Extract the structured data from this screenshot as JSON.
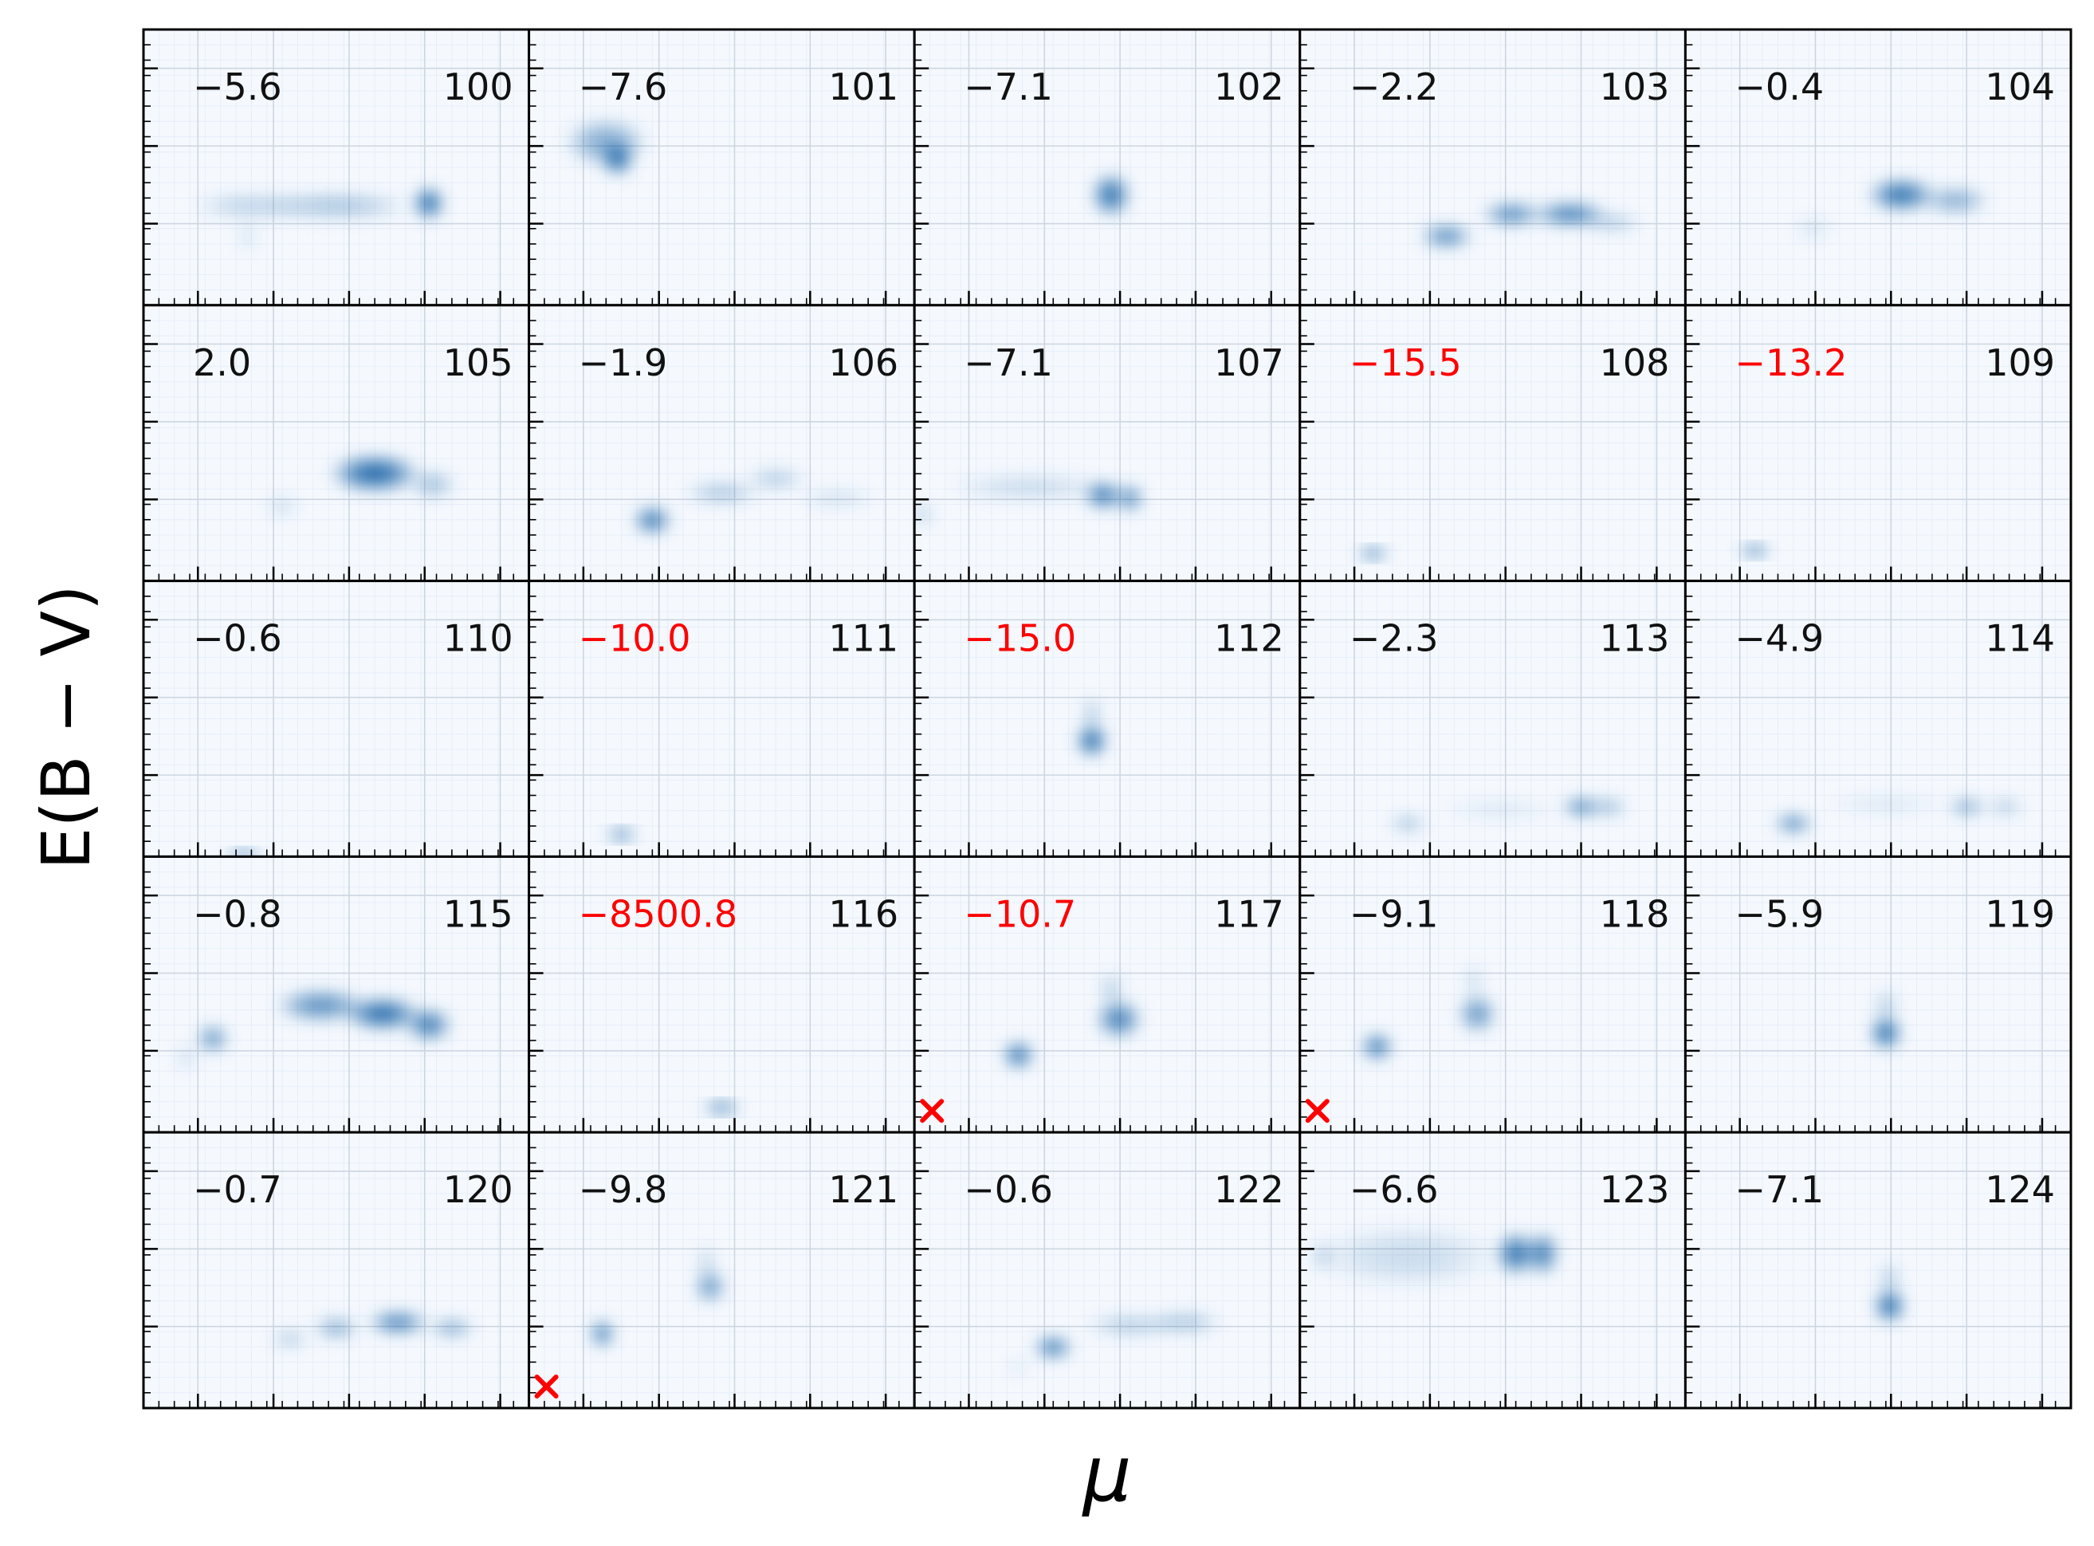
{
  "figure": {
    "xlabel": "μ",
    "ylabel": "E(B − V)",
    "rows": 5,
    "cols": 5,
    "colormap": "Blues",
    "grid": true
  },
  "colors": {
    "frame": "#000000",
    "normal_label": "#111111",
    "flagged_label": "#ff0000",
    "marker": "#ff0000",
    "panel_background": "#f5f9fe",
    "density": "#08519c"
  },
  "chart_data": {
    "type": "heatmap",
    "xlabel": "μ",
    "ylabel": "E(B − V)",
    "grid": true,
    "x_tick_count": 5,
    "y_tick_count": 3,
    "panels": [
      {
        "id": "100",
        "value": "−5.6",
        "flagged": false,
        "marker": false,
        "blobs": [
          {
            "x": 0.28,
            "y": 0.36,
            "w": 0.16,
            "h": 0.05,
            "a": 0.25
          },
          {
            "x": 0.5,
            "y": 0.36,
            "w": 0.2,
            "h": 0.05,
            "a": 0.35
          },
          {
            "x": 0.74,
            "y": 0.37,
            "w": 0.04,
            "h": 0.06,
            "a": 1.0
          },
          {
            "x": 0.27,
            "y": 0.25,
            "w": 0.02,
            "h": 0.06,
            "a": 0.2
          }
        ]
      },
      {
        "id": "101",
        "value": "−7.6",
        "flagged": false,
        "marker": false,
        "blobs": [
          {
            "x": 0.2,
            "y": 0.59,
            "w": 0.11,
            "h": 0.09,
            "a": 0.5
          },
          {
            "x": 0.23,
            "y": 0.53,
            "w": 0.04,
            "h": 0.06,
            "a": 1.0
          }
        ]
      },
      {
        "id": "102",
        "value": "−7.1",
        "flagged": false,
        "marker": false,
        "blobs": [
          {
            "x": 0.51,
            "y": 0.4,
            "w": 0.05,
            "h": 0.08,
            "a": 0.9
          }
        ]
      },
      {
        "id": "103",
        "value": "−2.2",
        "flagged": false,
        "marker": false,
        "blobs": [
          {
            "x": 0.38,
            "y": 0.25,
            "w": 0.07,
            "h": 0.04,
            "a": 0.8
          },
          {
            "x": 0.55,
            "y": 0.33,
            "w": 0.08,
            "h": 0.04,
            "a": 0.8
          },
          {
            "x": 0.7,
            "y": 0.33,
            "w": 0.1,
            "h": 0.04,
            "a": 0.9
          },
          {
            "x": 0.81,
            "y": 0.3,
            "w": 0.08,
            "h": 0.03,
            "a": 0.35
          }
        ]
      },
      {
        "id": "104",
        "value": "−0.4",
        "flagged": false,
        "marker": false,
        "blobs": [
          {
            "x": 0.33,
            "y": 0.28,
            "w": 0.05,
            "h": 0.04,
            "a": 0.15
          },
          {
            "x": 0.56,
            "y": 0.4,
            "w": 0.09,
            "h": 0.06,
            "a": 0.9
          },
          {
            "x": 0.7,
            "y": 0.38,
            "w": 0.09,
            "h": 0.05,
            "a": 0.5
          }
        ]
      },
      {
        "id": "105",
        "value": "2.0",
        "flagged": false,
        "marker": false,
        "blobs": [
          {
            "x": 0.36,
            "y": 0.27,
            "w": 0.04,
            "h": 0.04,
            "a": 0.2
          },
          {
            "x": 0.6,
            "y": 0.39,
            "w": 0.12,
            "h": 0.07,
            "a": 0.95
          },
          {
            "x": 0.75,
            "y": 0.35,
            "w": 0.06,
            "h": 0.05,
            "a": 0.4
          }
        ]
      },
      {
        "id": "106",
        "value": "−1.9",
        "flagged": false,
        "marker": false,
        "blobs": [
          {
            "x": 0.32,
            "y": 0.22,
            "w": 0.05,
            "h": 0.05,
            "a": 0.9
          },
          {
            "x": 0.5,
            "y": 0.32,
            "w": 0.1,
            "h": 0.04,
            "a": 0.35
          },
          {
            "x": 0.64,
            "y": 0.37,
            "w": 0.08,
            "h": 0.04,
            "a": 0.3
          },
          {
            "x": 0.8,
            "y": 0.3,
            "w": 0.1,
            "h": 0.03,
            "a": 0.2
          }
        ]
      },
      {
        "id": "107",
        "value": "−7.1",
        "flagged": false,
        "marker": false,
        "blobs": [
          {
            "x": 0.3,
            "y": 0.34,
            "w": 0.22,
            "h": 0.05,
            "a": 0.2
          },
          {
            "x": 0.49,
            "y": 0.31,
            "w": 0.05,
            "h": 0.05,
            "a": 0.9
          },
          {
            "x": 0.56,
            "y": 0.3,
            "w": 0.03,
            "h": 0.05,
            "a": 0.85
          },
          {
            "x": 0.02,
            "y": 0.24,
            "w": 0.03,
            "h": 0.04,
            "a": 0.3
          }
        ]
      },
      {
        "id": "108",
        "value": "−15.5",
        "flagged": true,
        "marker": false,
        "blobs": [
          {
            "x": 0.19,
            "y": 0.1,
            "w": 0.04,
            "h": 0.02,
            "a": 1.0
          }
        ]
      },
      {
        "id": "109",
        "value": "−13.2",
        "flagged": true,
        "marker": false,
        "blobs": [
          {
            "x": 0.18,
            "y": 0.11,
            "w": 0.04,
            "h": 0.02,
            "a": 1.0
          }
        ]
      },
      {
        "id": "110",
        "value": "−0.6",
        "flagged": false,
        "marker": false,
        "blobs": [
          {
            "x": 0.26,
            "y": 0.01,
            "w": 0.05,
            "h": 0.015,
            "a": 1.0
          }
        ]
      },
      {
        "id": "111",
        "value": "−10.0",
        "flagged": true,
        "marker": false,
        "blobs": [
          {
            "x": 0.24,
            "y": 0.08,
            "w": 0.04,
            "h": 0.02,
            "a": 1.0
          }
        ]
      },
      {
        "id": "112",
        "value": "−15.0",
        "flagged": true,
        "marker": false,
        "blobs": [
          {
            "x": 0.46,
            "y": 0.42,
            "w": 0.04,
            "h": 0.06,
            "a": 1.0
          },
          {
            "x": 0.46,
            "y": 0.52,
            "w": 0.02,
            "h": 0.06,
            "a": 0.4
          }
        ]
      },
      {
        "id": "113",
        "value": "−2.3",
        "flagged": false,
        "marker": false,
        "blobs": [
          {
            "x": 0.28,
            "y": 0.12,
            "w": 0.05,
            "h": 0.03,
            "a": 0.4
          },
          {
            "x": 0.52,
            "y": 0.17,
            "w": 0.16,
            "h": 0.03,
            "a": 0.15
          },
          {
            "x": 0.73,
            "y": 0.18,
            "w": 0.05,
            "h": 0.03,
            "a": 0.9
          },
          {
            "x": 0.8,
            "y": 0.18,
            "w": 0.05,
            "h": 0.03,
            "a": 0.5
          }
        ]
      },
      {
        "id": "114",
        "value": "−4.9",
        "flagged": false,
        "marker": false,
        "blobs": [
          {
            "x": 0.28,
            "y": 0.12,
            "w": 0.05,
            "h": 0.03,
            "a": 0.9
          },
          {
            "x": 0.52,
            "y": 0.19,
            "w": 0.16,
            "h": 0.03,
            "a": 0.15
          },
          {
            "x": 0.73,
            "y": 0.18,
            "w": 0.05,
            "h": 0.03,
            "a": 0.6
          },
          {
            "x": 0.83,
            "y": 0.18,
            "w": 0.05,
            "h": 0.03,
            "a": 0.35
          }
        ]
      },
      {
        "id": "115",
        "value": "−0.8",
        "flagged": false,
        "marker": false,
        "blobs": [
          {
            "x": 0.18,
            "y": 0.34,
            "w": 0.04,
            "h": 0.05,
            "a": 0.7
          },
          {
            "x": 0.46,
            "y": 0.46,
            "w": 0.12,
            "h": 0.06,
            "a": 0.7
          },
          {
            "x": 0.62,
            "y": 0.43,
            "w": 0.1,
            "h": 0.06,
            "a": 0.95
          },
          {
            "x": 0.74,
            "y": 0.39,
            "w": 0.06,
            "h": 0.06,
            "a": 0.85
          },
          {
            "x": 0.11,
            "y": 0.27,
            "w": 0.02,
            "h": 0.05,
            "a": 0.25
          }
        ]
      },
      {
        "id": "116",
        "value": "−8500.8",
        "flagged": true,
        "marker": false,
        "blobs": [
          {
            "x": 0.5,
            "y": 0.09,
            "w": 0.05,
            "h": 0.02,
            "a": 1.0
          }
        ]
      },
      {
        "id": "117",
        "value": "−10.7",
        "flagged": true,
        "marker": true,
        "blobs": [
          {
            "x": 0.27,
            "y": 0.28,
            "w": 0.04,
            "h": 0.05,
            "a": 0.95
          },
          {
            "x": 0.53,
            "y": 0.41,
            "w": 0.06,
            "h": 0.07,
            "a": 0.8
          },
          {
            "x": 0.51,
            "y": 0.52,
            "w": 0.03,
            "h": 0.06,
            "a": 0.3
          }
        ]
      },
      {
        "id": "118",
        "value": "−9.1",
        "flagged": false,
        "marker": true,
        "blobs": [
          {
            "x": 0.2,
            "y": 0.31,
            "w": 0.04,
            "h": 0.05,
            "a": 0.9
          },
          {
            "x": 0.46,
            "y": 0.43,
            "w": 0.05,
            "h": 0.07,
            "a": 0.65
          },
          {
            "x": 0.45,
            "y": 0.55,
            "w": 0.02,
            "h": 0.06,
            "a": 0.25
          }
        ]
      },
      {
        "id": "119",
        "value": "−5.9",
        "flagged": false,
        "marker": false,
        "blobs": [
          {
            "x": 0.52,
            "y": 0.36,
            "w": 0.04,
            "h": 0.06,
            "a": 1.0
          },
          {
            "x": 0.52,
            "y": 0.46,
            "w": 0.03,
            "h": 0.06,
            "a": 0.3
          }
        ]
      },
      {
        "id": "120",
        "value": "−0.7",
        "flagged": false,
        "marker": false,
        "blobs": [
          {
            "x": 0.38,
            "y": 0.25,
            "w": 0.05,
            "h": 0.03,
            "a": 0.35
          },
          {
            "x": 0.5,
            "y": 0.29,
            "w": 0.06,
            "h": 0.04,
            "a": 0.5
          },
          {
            "x": 0.66,
            "y": 0.31,
            "w": 0.08,
            "h": 0.04,
            "a": 0.85
          },
          {
            "x": 0.8,
            "y": 0.29,
            "w": 0.06,
            "h": 0.03,
            "a": 0.6
          }
        ]
      },
      {
        "id": "121",
        "value": "−9.8",
        "flagged": false,
        "marker": true,
        "blobs": [
          {
            "x": 0.19,
            "y": 0.27,
            "w": 0.03,
            "h": 0.05,
            "a": 0.9
          },
          {
            "x": 0.47,
            "y": 0.44,
            "w": 0.04,
            "h": 0.06,
            "a": 0.65
          },
          {
            "x": 0.46,
            "y": 0.53,
            "w": 0.02,
            "h": 0.06,
            "a": 0.3
          }
        ]
      },
      {
        "id": "122",
        "value": "−0.6",
        "flagged": false,
        "marker": false,
        "blobs": [
          {
            "x": 0.36,
            "y": 0.22,
            "w": 0.05,
            "h": 0.04,
            "a": 0.9
          },
          {
            "x": 0.56,
            "y": 0.3,
            "w": 0.12,
            "h": 0.04,
            "a": 0.3
          },
          {
            "x": 0.7,
            "y": 0.31,
            "w": 0.1,
            "h": 0.04,
            "a": 0.35
          },
          {
            "x": 0.27,
            "y": 0.15,
            "w": 0.02,
            "h": 0.03,
            "a": 0.2
          }
        ]
      },
      {
        "id": "123",
        "value": "−6.6",
        "flagged": false,
        "marker": false,
        "blobs": [
          {
            "x": 0.28,
            "y": 0.55,
            "w": 0.25,
            "h": 0.12,
            "a": 0.18
          },
          {
            "x": 0.56,
            "y": 0.56,
            "w": 0.05,
            "h": 0.08,
            "a": 0.9
          },
          {
            "x": 0.63,
            "y": 0.56,
            "w": 0.04,
            "h": 0.08,
            "a": 0.85
          },
          {
            "x": 0.06,
            "y": 0.55,
            "w": 0.03,
            "h": 0.06,
            "a": 0.25
          }
        ]
      },
      {
        "id": "124",
        "value": "−7.1",
        "flagged": false,
        "marker": false,
        "blobs": [
          {
            "x": 0.53,
            "y": 0.37,
            "w": 0.04,
            "h": 0.06,
            "a": 1.0
          },
          {
            "x": 0.53,
            "y": 0.47,
            "w": 0.03,
            "h": 0.06,
            "a": 0.3
          }
        ]
      }
    ]
  }
}
